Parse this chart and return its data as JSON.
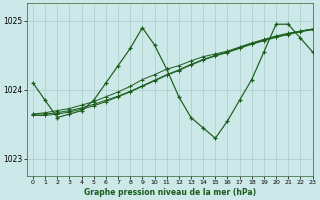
{
  "xlabel": "Graphe pression niveau de la mer (hPa)",
  "bg_color": "#cce8e8",
  "grid_color": "#aacccc",
  "line_color": "#1a5c1a",
  "ylim": [
    1022.75,
    1025.25
  ],
  "xlim": [
    -0.5,
    23
  ],
  "yticks": [
    1023,
    1024,
    1025
  ],
  "xticks": [
    0,
    1,
    2,
    3,
    4,
    5,
    6,
    7,
    8,
    9,
    10,
    11,
    12,
    13,
    14,
    15,
    16,
    17,
    18,
    19,
    20,
    21,
    22,
    23
  ],
  "series": {
    "main": [
      1024.1,
      1023.85,
      1023.6,
      1023.65,
      1023.7,
      1023.85,
      1024.1,
      1024.35,
      1024.6,
      1024.9,
      1024.65,
      1024.3,
      1023.9,
      1023.6,
      1023.45,
      1023.3,
      1023.55,
      1023.85,
      1024.15,
      1024.55,
      1024.95,
      1024.95,
      1024.75,
      1024.55
    ],
    "trend1": [
      1023.65,
      1023.67,
      1023.7,
      1023.73,
      1023.78,
      1023.83,
      1023.9,
      1023.97,
      1024.05,
      1024.15,
      1024.22,
      1024.3,
      1024.35,
      1024.42,
      1024.48,
      1024.52,
      1024.56,
      1024.62,
      1024.68,
      1024.73,
      1024.78,
      1024.82,
      1024.85,
      1024.88
    ],
    "trend2": [
      1023.65,
      1023.65,
      1023.67,
      1023.7,
      1023.74,
      1023.79,
      1023.85,
      1023.91,
      1023.98,
      1024.06,
      1024.14,
      1024.22,
      1024.29,
      1024.37,
      1024.44,
      1024.5,
      1024.55,
      1024.61,
      1024.67,
      1024.72,
      1024.77,
      1024.81,
      1024.85,
      1024.88
    ],
    "trend3": [
      1023.63,
      1023.63,
      1023.65,
      1023.68,
      1023.72,
      1023.77,
      1023.83,
      1023.9,
      1023.97,
      1024.05,
      1024.13,
      1024.21,
      1024.28,
      1024.36,
      1024.43,
      1024.49,
      1024.54,
      1024.6,
      1024.66,
      1024.71,
      1024.76,
      1024.8,
      1024.84,
      1024.87
    ]
  }
}
